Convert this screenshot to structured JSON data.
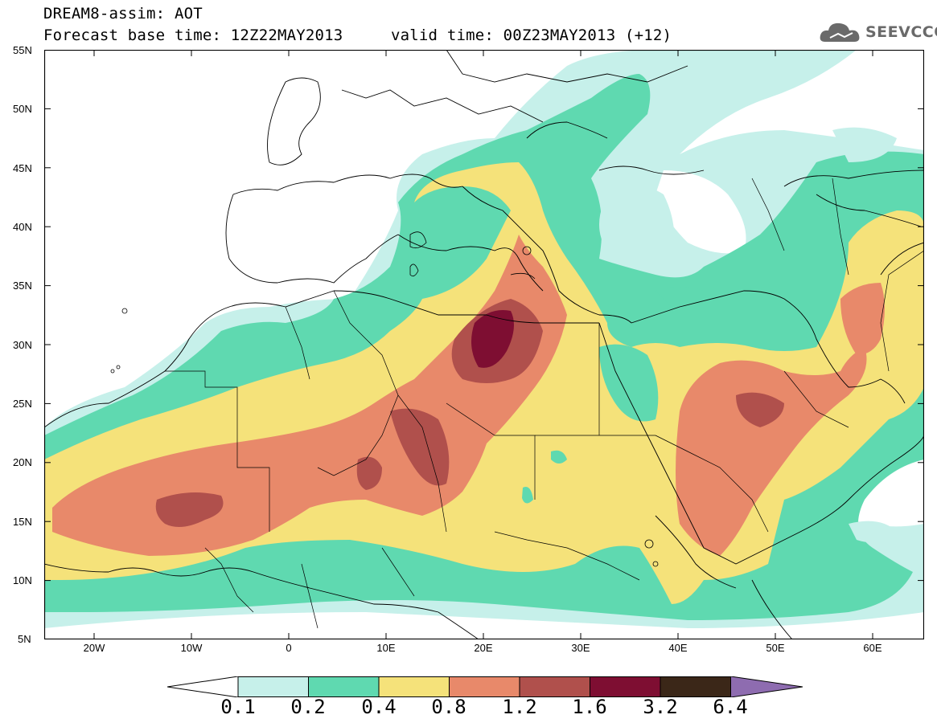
{
  "title": {
    "line1": "DREAM8-assim: AOT",
    "line2": "Forecast base time: 12Z22MAY2013",
    "valid": "valid time: 00Z23MAY2013 (+12)"
  },
  "logo": {
    "text": "SEEVCCC"
  },
  "lat_labels": [
    "55N",
    "50N",
    "45N",
    "40N",
    "35N",
    "30N",
    "25N",
    "20N",
    "15N",
    "10N",
    "5N"
  ],
  "lon_labels": [
    "20W",
    "10W",
    "0",
    "10E",
    "20E",
    "30E",
    "40E",
    "50E",
    "60E"
  ],
  "colorbar": {
    "thresholds": [
      "0.1",
      "0.2",
      "0.4",
      "0.8",
      "1.2",
      "1.6",
      "3.2",
      "6.4"
    ],
    "colors": [
      "#ffffff",
      "#c6f0ea",
      "#5fd9b0",
      "#f5e27a",
      "#e8896a",
      "#b0504c",
      "#7e0e32",
      "#3b2718",
      "#8e6cb0"
    ]
  },
  "colors": {
    "c01": "#c6f0ea",
    "c02": "#5fd9b0",
    "c04": "#f5e27a",
    "c08": "#e8896a",
    "c12": "#b0504c",
    "c16": "#7e0e32"
  }
}
